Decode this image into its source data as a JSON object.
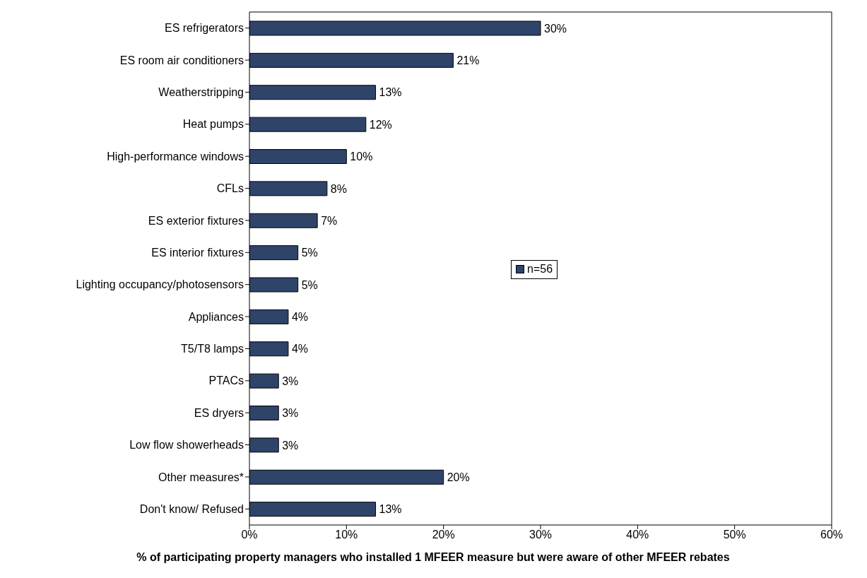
{
  "chart_data": {
    "type": "bar",
    "orientation": "horizontal",
    "xlabel": "% of participating property managers who installed 1 MFEER measure but were aware of other MFEER rebates",
    "categories": [
      "ES refrigerators",
      "ES room air conditioners",
      "Weatherstripping",
      "Heat pumps",
      "High-performance windows",
      "CFLs",
      "ES exterior fixtures",
      "ES interior fixtures",
      "Lighting occupancy/photosensors",
      "Appliances",
      "T5/T8 lamps",
      "PTACs",
      "ES dryers",
      "Low flow showerheads",
      "Other measures*",
      "Don't know/ Refused"
    ],
    "series": [
      {
        "name": "n=56",
        "color": "#2e4468",
        "values": [
          30,
          21,
          13,
          12,
          10,
          8,
          7,
          5,
          5,
          4,
          4,
          3,
          3,
          3,
          20,
          13
        ],
        "value_labels": [
          "30%",
          "21%",
          "13%",
          "12%",
          "10%",
          "8%",
          "7%",
          "5%",
          "5%",
          "4%",
          "4%",
          "3%",
          "3%",
          "3%",
          "20%",
          "13%"
        ]
      }
    ],
    "xlim": [
      0,
      60
    ],
    "xticks": [
      {
        "value": 0,
        "label": "0%"
      },
      {
        "value": 10,
        "label": "10%"
      },
      {
        "value": 20,
        "label": "20%"
      },
      {
        "value": 30,
        "label": "30%"
      },
      {
        "value": 40,
        "label": "40%"
      },
      {
        "value": 50,
        "label": "50%"
      },
      {
        "value": 60,
        "label": "60%"
      }
    ],
    "grid": false,
    "legend": "right"
  }
}
